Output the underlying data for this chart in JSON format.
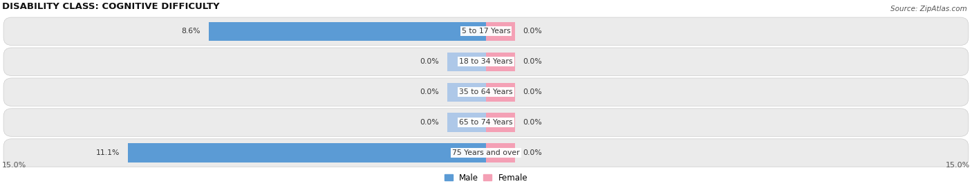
{
  "title": "DISABILITY CLASS: COGNITIVE DIFFICULTY",
  "source": "Source: ZipAtlas.com",
  "categories": [
    "5 to 17 Years",
    "18 to 34 Years",
    "35 to 64 Years",
    "65 to 74 Years",
    "75 Years and over"
  ],
  "male_values": [
    8.6,
    0.0,
    0.0,
    0.0,
    11.1
  ],
  "female_values": [
    0.0,
    0.0,
    0.0,
    0.0,
    0.0
  ],
  "max_value": 15.0,
  "male_color": "#5b9bd5",
  "male_color_light": "#aec8e8",
  "female_color": "#f4a0b5",
  "female_color_light": "#f9cdd8",
  "row_bg_color": "#ebebeb",
  "label_color": "#333333",
  "title_color": "#111111",
  "axis_label_color": "#555555",
  "x_axis_label_left": "15.0%",
  "x_axis_label_right": "15.0%"
}
